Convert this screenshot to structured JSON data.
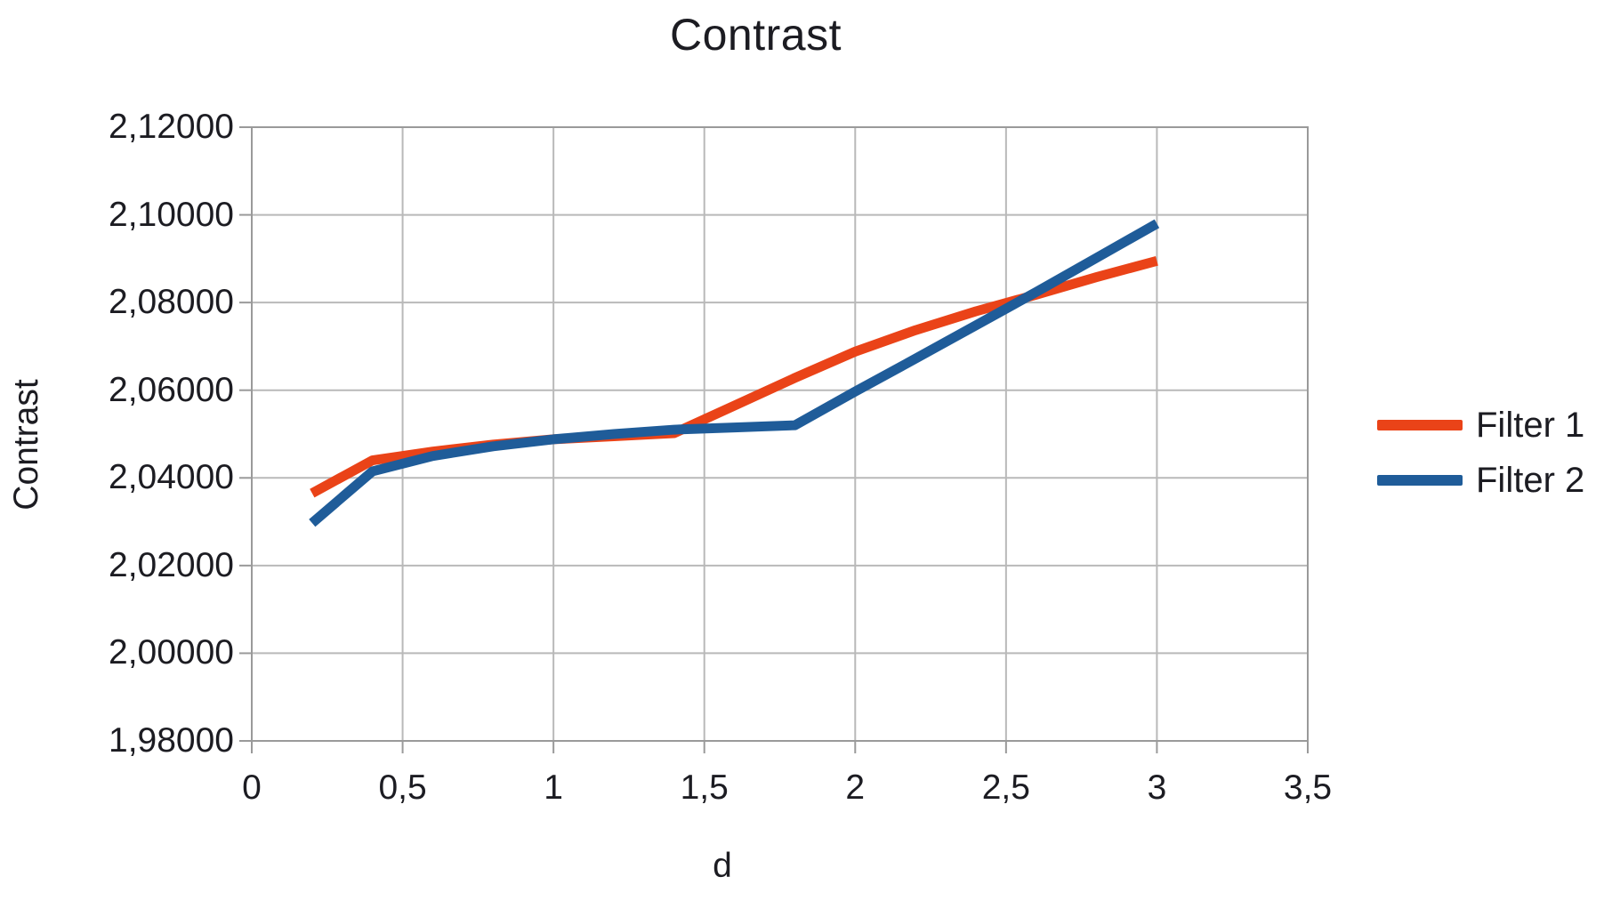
{
  "chart_data": {
    "type": "line",
    "title": "Contrast",
    "xlabel": "d",
    "ylabel": "Contrast",
    "xlim": [
      0,
      3.5
    ],
    "ylim": [
      1.98,
      2.12
    ],
    "grid": true,
    "legend_position": "right",
    "x_ticks": [
      0,
      0.5,
      1,
      1.5,
      2,
      2.5,
      3,
      3.5
    ],
    "x_tick_labels": [
      "0",
      "0,5",
      "1",
      "1,5",
      "2",
      "2,5",
      "3",
      "3,5"
    ],
    "y_ticks": [
      1.98,
      2.0,
      2.02,
      2.04,
      2.06,
      2.08,
      2.1,
      2.12
    ],
    "y_tick_labels": [
      "1,98000",
      "2,00000",
      "2,02000",
      "2,04000",
      "2,06000",
      "2,08000",
      "2,10000",
      "2,12000"
    ],
    "x": [
      0.2,
      0.4,
      0.6,
      0.8,
      1.0,
      1.2,
      1.4,
      1.6,
      1.8,
      2.0,
      2.2,
      2.4,
      2.6,
      2.8,
      3.0
    ],
    "series": [
      {
        "name": "Filter 1",
        "color": "#ea4318",
        "values": [
          2.0365,
          2.044,
          2.046,
          2.0476,
          2.0488,
          2.0495,
          2.0502,
          2.0565,
          2.0628,
          2.0688,
          2.0737,
          2.078,
          2.0818,
          2.0858,
          2.0895
        ]
      },
      {
        "name": "Filter 2",
        "color": "#1f5c99",
        "values": [
          2.0297,
          2.0415,
          2.045,
          2.0472,
          2.0488,
          2.05,
          2.051,
          2.0515,
          2.052,
          2.0597,
          2.0672,
          2.0748,
          2.0824,
          2.0902,
          2.098
        ]
      }
    ]
  },
  "colors": {
    "gridline": "#b9b9b9",
    "axis": "#9a9a9a",
    "text": "#1c1c22",
    "background": "#ffffff"
  }
}
